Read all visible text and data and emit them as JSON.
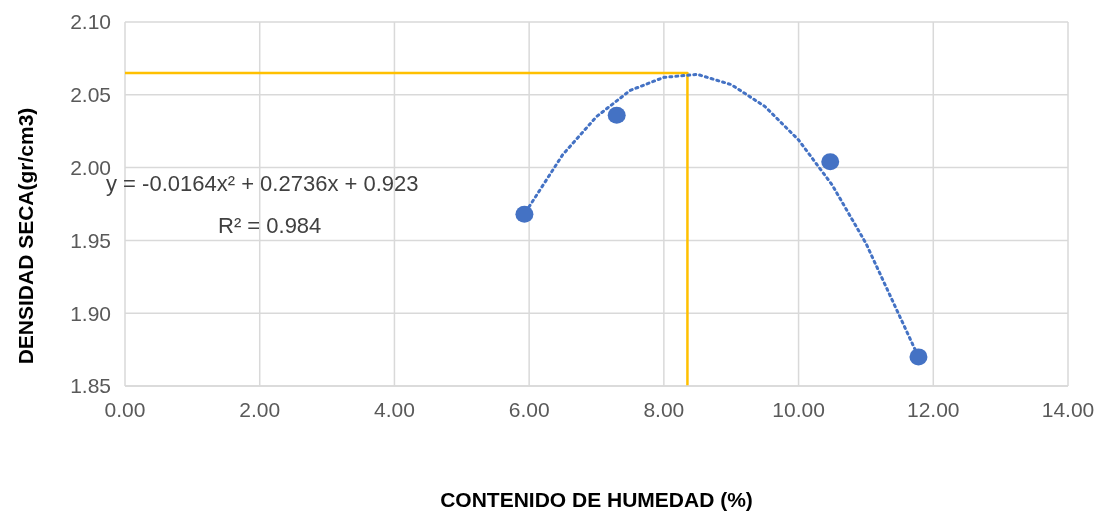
{
  "chart_data": {
    "type": "scatter",
    "xlabel": "CONTENIDO DE HUMEDAD (%)",
    "ylabel": "DENSIDAD SECA(gr/cm3)",
    "xlim": [
      0,
      14
    ],
    "xticks": [
      {
        "value": 0,
        "label": "0.00"
      },
      {
        "value": 2,
        "label": "2.00"
      },
      {
        "value": 4,
        "label": "4.00"
      },
      {
        "value": 6,
        "label": "6.00"
      },
      {
        "value": 8,
        "label": "8.00"
      },
      {
        "value": 10,
        "label": "10.00"
      },
      {
        "value": 12,
        "label": "12.00"
      },
      {
        "value": 14,
        "label": "14.00"
      }
    ],
    "ylim": [
      1.85,
      2.1
    ],
    "yticks": [
      {
        "value": 1.85,
        "label": "1.85"
      },
      {
        "value": 1.9,
        "label": "1.90"
      },
      {
        "value": 1.95,
        "label": "1.95"
      },
      {
        "value": 2,
        "label": "2.00"
      },
      {
        "value": 2.05,
        "label": "2.05"
      },
      {
        "value": 2.1,
        "label": "2.10"
      }
    ],
    "grid": true,
    "series": [
      {
        "type": "line",
        "color": "#ffc000",
        "line_style": "solid",
        "marker": "none",
        "x": [
          0,
          8.35,
          8.35
        ],
        "values": [
          2.065,
          2.065,
          1.85
        ]
      },
      {
        "type": "line",
        "color": "#4472c4",
        "line_style": "dotted",
        "marker": "none",
        "x": [
          5.9,
          6.5,
          7,
          7.5,
          8,
          8.5,
          9,
          9.5,
          10,
          10.5,
          11,
          11.8
        ],
        "values": [
          1.966,
          2.009,
          2.035,
          2.053,
          2.062,
          2.064,
          2.057,
          2.042,
          2.019,
          1.988,
          1.948,
          1.868
        ]
      },
      {
        "color": "#4472c4",
        "marker": "circle",
        "x": [
          5.93,
          7.3,
          10.47,
          11.78
        ],
        "values": [
          1.968,
          2.036,
          2.004,
          1.87
        ]
      }
    ],
    "annotations": [
      "y = -0.0164x² + 0.2736x + 0.923",
      "R² = 0.984"
    ]
  }
}
